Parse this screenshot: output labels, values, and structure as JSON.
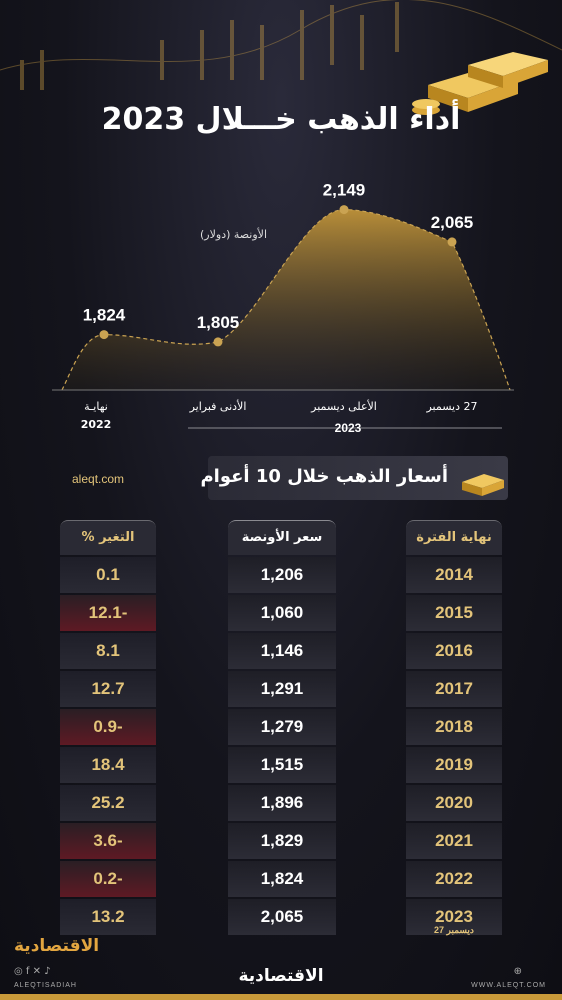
{
  "title": "أداء الذهب خـــلال 2023",
  "chart_data": [
    {
      "type": "area",
      "ylabel": "الأونصة (دولار)",
      "categories": [
        "نهاية 2022",
        "الأدنى فبراير",
        "الأعلى ديسمبر",
        "27 ديسمبر"
      ],
      "category_lines": [
        [
          "نهايـة",
          "2022"
        ],
        [
          "الأدنى فبراير"
        ],
        [
          "الأعلى ديسمبر"
        ],
        [
          "27 ديسمبر"
        ]
      ],
      "group_label": "2023",
      "values": [
        1824,
        1805,
        2149,
        2065
      ],
      "value_labels": [
        "1,824",
        "1,805",
        "2,149",
        "2,065"
      ]
    },
    {
      "type": "table",
      "title": "أسعار الذهب خلال 10 أعوام",
      "columns": [
        "نهاية الفترة",
        "سعر الأونصة",
        "التغير %"
      ],
      "years": [
        "2014",
        "2015",
        "2016",
        "2017",
        "2018",
        "2019",
        "2020",
        "2021",
        "2022",
        "2023"
      ],
      "year_note": "27 ديسمبر",
      "prices": [
        "1,206",
        "1,060",
        "1,146",
        "1,291",
        "1,279",
        "1,515",
        "1,896",
        "1,829",
        "1,824",
        "2,065"
      ],
      "changes": [
        "0.1",
        "12.1-",
        "8.1",
        "12.7",
        "0.9-",
        "18.4",
        "25.2",
        "3.6-",
        "0.2-",
        "13.2"
      ]
    }
  ],
  "source": "aleqt.com",
  "footer": {
    "logo": "الاقتصادية",
    "handle": "ALEQTISADIAH",
    "website": "WWW.ALEQT.COM",
    "social_icons": "◎ f ✕ ♪",
    "web_icon": "⊕"
  },
  "colors": {
    "gold": "#e3c47a",
    "accent": "#c99a3a",
    "negative": "#5e1a24"
  }
}
